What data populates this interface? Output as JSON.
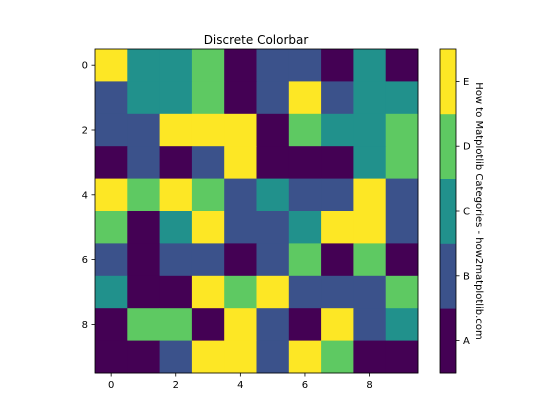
{
  "chart_data": {
    "type": "heatmap",
    "title": "Discrete Colorbar",
    "xlabel": "",
    "ylabel": "",
    "x_ticks": [
      "0",
      "2",
      "4",
      "6",
      "8"
    ],
    "y_ticks": [
      "0",
      "2",
      "4",
      "6",
      "8"
    ],
    "grid": false,
    "colorbar": {
      "label": "How to Matplotlib Categories - how2matplotlib.com",
      "placement": "right",
      "categories": [
        "A",
        "B",
        "C",
        "D",
        "E"
      ],
      "colors": [
        "#440154",
        "#3b528b",
        "#21918c",
        "#5ec962",
        "#fde725"
      ]
    },
    "matrix": [
      [
        "E",
        "C",
        "C",
        "D",
        "A",
        "B",
        "B",
        "A",
        "C",
        "A"
      ],
      [
        "B",
        "C",
        "C",
        "D",
        "A",
        "B",
        "E",
        "B",
        "C",
        "C"
      ],
      [
        "B",
        "B",
        "E",
        "E",
        "E",
        "A",
        "D",
        "C",
        "C",
        "D"
      ],
      [
        "A",
        "B",
        "A",
        "B",
        "E",
        "A",
        "A",
        "A",
        "C",
        "D"
      ],
      [
        "E",
        "D",
        "E",
        "D",
        "B",
        "C",
        "B",
        "B",
        "E",
        "B"
      ],
      [
        "D",
        "A",
        "C",
        "E",
        "B",
        "B",
        "C",
        "E",
        "E",
        "B"
      ],
      [
        "B",
        "A",
        "B",
        "B",
        "A",
        "B",
        "D",
        "A",
        "D",
        "A"
      ],
      [
        "C",
        "A",
        "A",
        "E",
        "D",
        "E",
        "B",
        "B",
        "B",
        "D"
      ],
      [
        "A",
        "D",
        "D",
        "A",
        "E",
        "B",
        "A",
        "E",
        "B",
        "C"
      ],
      [
        "A",
        "A",
        "B",
        "E",
        "E",
        "B",
        "E",
        "D",
        "A",
        "A"
      ]
    ]
  }
}
